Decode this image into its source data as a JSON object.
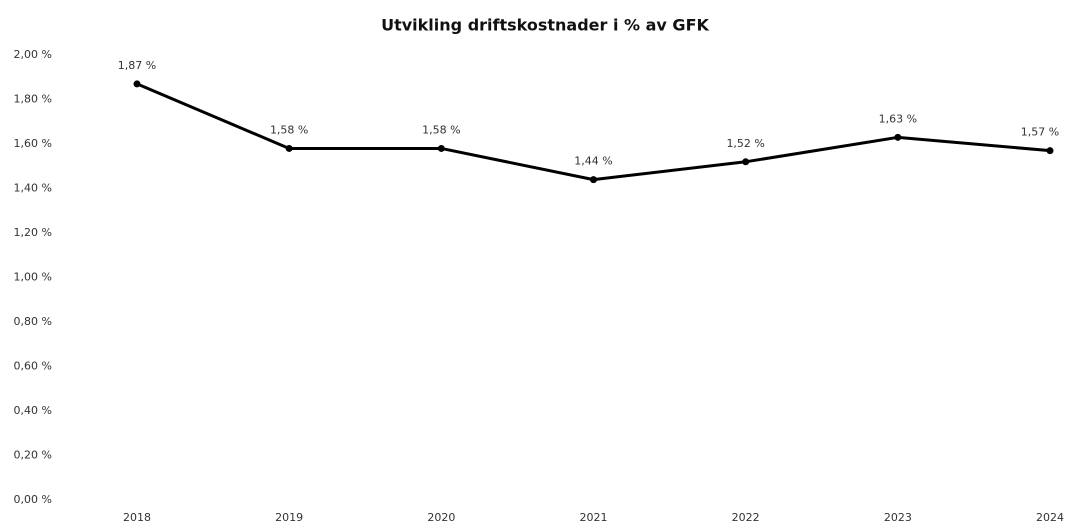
{
  "chart_data": {
    "type": "line",
    "title": "Utvikling driftskostnader i % av GFK",
    "categories": [
      "2018",
      "2019",
      "2020",
      "2021",
      "2022",
      "2023",
      "2024"
    ],
    "values": [
      1.87,
      1.58,
      1.58,
      1.44,
      1.52,
      1.63,
      1.57
    ],
    "value_labels": [
      "1,87 %",
      "1,58 %",
      "1,58 %",
      "1,44 %",
      "1,52 %",
      "1,63 %",
      "1,57 %"
    ],
    "color": "#000000",
    "ylim": [
      0,
      2
    ],
    "yticks": [
      {
        "value": 0,
        "label": "0,00 %"
      },
      {
        "value": 0.2,
        "label": "0,20 %"
      },
      {
        "value": 0.4,
        "label": "0,40 %"
      },
      {
        "value": 0.6,
        "label": "0,60 %"
      },
      {
        "value": 0.8,
        "label": "0,80 %"
      },
      {
        "value": 1,
        "label": "1,00 %"
      },
      {
        "value": 1.2,
        "label": "1,20 %"
      },
      {
        "value": 1.4,
        "label": "1,40 %"
      },
      {
        "value": 1.6,
        "label": "1,60 %"
      },
      {
        "value": 1.8,
        "label": "1,80 %"
      },
      {
        "value": 2,
        "label": "2,00 %"
      }
    ],
    "grid": false
  }
}
